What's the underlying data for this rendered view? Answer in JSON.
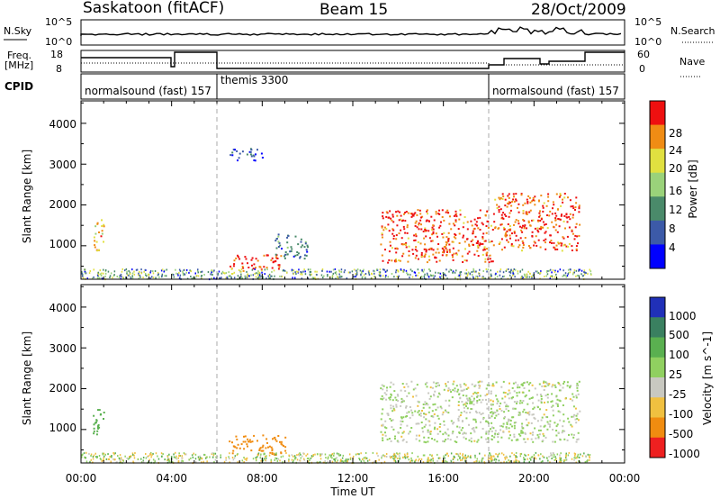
{
  "header": {
    "station": "Saskatoon (fitACF)",
    "beam": "Beam 15",
    "date": "28/Oct/2009"
  },
  "noise_panel": {
    "left_label": "N.Sky",
    "left_ticks": [
      "10^5",
      "10^0"
    ],
    "right_ticks": [
      "10^5",
      "10^0"
    ],
    "right_label": "N.Search"
  },
  "freq_panel": {
    "label_line1": "Freq.",
    "label_line2": "[MHz]",
    "left_ticks": [
      "18",
      "8"
    ],
    "right_ticks": [
      "60",
      "0"
    ],
    "right_label": "Nave"
  },
  "cpid": {
    "label": "CPID",
    "segments": [
      {
        "name": "normalsound (fast) 157",
        "start_h": 0.0
      },
      {
        "name": "themis 3300",
        "start_h": 6.0
      },
      {
        "name": "normalsound (fast) 157",
        "start_h": 18.0
      }
    ]
  },
  "time_axis": {
    "ticks": [
      "00:00",
      "04:00",
      "08:00",
      "12:00",
      "16:00",
      "20:00",
      "00:00"
    ],
    "label": "Time UT"
  },
  "range_axis": {
    "label": "Slant Range [km]",
    "ticks": [
      "1000",
      "2000",
      "3000",
      "4000"
    ]
  },
  "power_colorbar": {
    "label": "Power [dB]",
    "ticks": [
      "4",
      "8",
      "12",
      "16",
      "20",
      "24",
      "28"
    ],
    "colors": [
      "#0000ff",
      "#3c5aa8",
      "#4a8a6a",
      "#9ad27a",
      "#e0e040",
      "#f08c14",
      "#ee1010"
    ]
  },
  "velocity_colorbar": {
    "label": "Velocity [m s^-1]",
    "ticks": [
      "1000",
      "500",
      "100",
      "25",
      "-25",
      "-100",
      "-500",
      "-1000"
    ],
    "colors": [
      "#2030b8",
      "#3a8060",
      "#5ab050",
      "#90d060",
      "#c8c8c0",
      "#f0c040",
      "#f08c10",
      "#ee2020"
    ]
  },
  "chart_data": {
    "type": "heatmap",
    "x_range_h": [
      0,
      24
    ],
    "y_range_km": [
      180,
      4550
    ],
    "power_regions": [
      {
        "t0": 0.5,
        "t1": 1.0,
        "r0": 900,
        "r1": 1700,
        "db": 22
      },
      {
        "t0": 6.5,
        "t1": 8.8,
        "r0": 400,
        "r1": 800,
        "db": 28
      },
      {
        "t0": 8.5,
        "t1": 10.0,
        "r0": 700,
        "r1": 1300,
        "db": 10
      },
      {
        "t0": 13.2,
        "t1": 18.2,
        "r0": 600,
        "r1": 1900,
        "db": 26
      },
      {
        "t0": 18.2,
        "t1": 22.0,
        "r0": 900,
        "r1": 2300,
        "db": 26
      },
      {
        "t0": 6.5,
        "t1": 8.0,
        "r0": 3100,
        "r1": 3400,
        "db": 8
      }
    ],
    "velocity_regions": [
      {
        "t0": 0.5,
        "t1": 1.0,
        "r0": 900,
        "r1": 1700,
        "vel": 100
      },
      {
        "t0": 6.5,
        "t1": 9.0,
        "r0": 400,
        "r1": 900,
        "vel": -300
      },
      {
        "t0": 13.2,
        "t1": 22.0,
        "r0": 700,
        "r1": 2200,
        "vel": 0
      }
    ]
  }
}
